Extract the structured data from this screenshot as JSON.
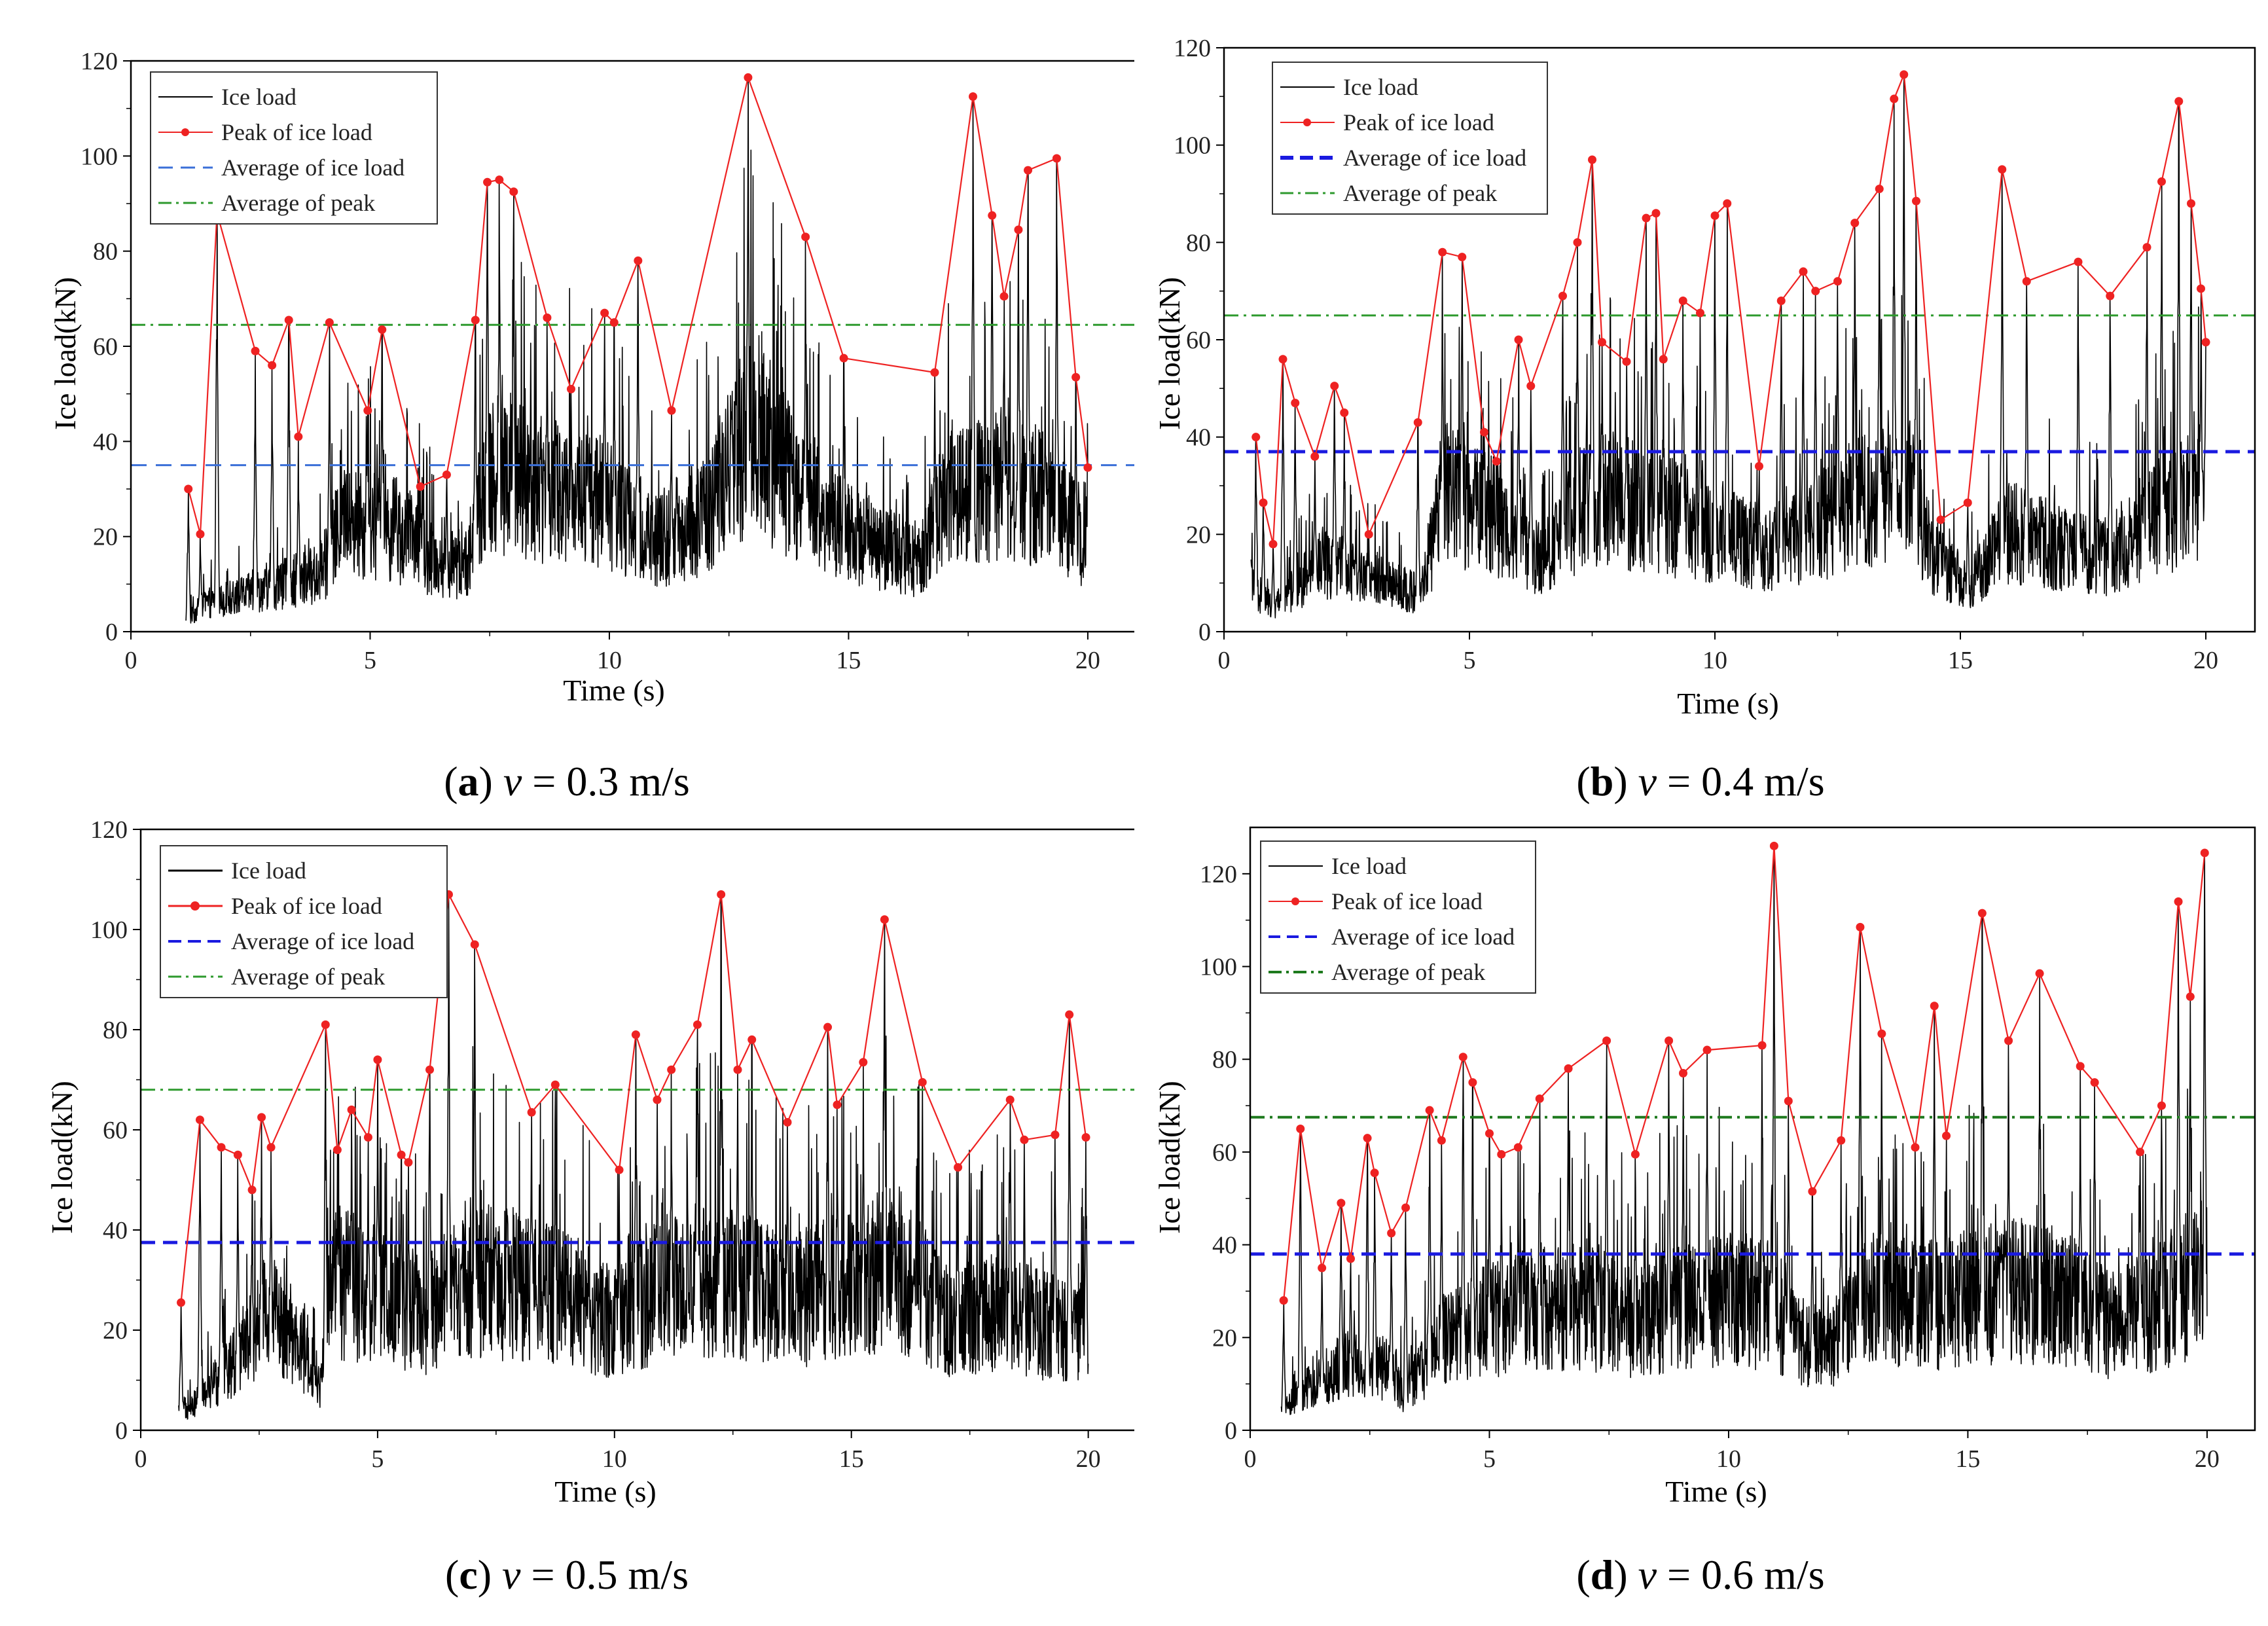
{
  "chart_data": [
    {
      "id": "a",
      "type": "line",
      "caption": {
        "letter": "a",
        "var": "v",
        "rest": " = 0.3 m/s"
      },
      "xlabel": "Time (s)",
      "ylabel": "Ice load(kN)",
      "xlim": [
        0,
        21
      ],
      "ylim": [
        0,
        120
      ],
      "xticks": [
        0,
        5,
        10,
        15,
        20
      ],
      "yticks": [
        0,
        20,
        40,
        60,
        80,
        100,
        120
      ],
      "legend": [
        "Ice load",
        "Peak of ice load",
        "Average of ice load",
        "Average of peak"
      ],
      "avg_style": "thin",
      "colors": {
        "ice": "#000000",
        "peak": "#ee2222",
        "avg": "#3a6fd8",
        "avgpeak": "#2e9a2e"
      },
      "avg_ice_load": 35,
      "avg_peak": 64.5,
      "signal_start": 1.15,
      "baseline": [
        [
          1.15,
          2
        ],
        [
          1.5,
          6
        ],
        [
          2.3,
          8
        ],
        [
          3.0,
          10
        ],
        [
          4.0,
          13
        ],
        [
          4.4,
          24
        ],
        [
          5.3,
          24
        ],
        [
          6.5,
          15
        ],
        [
          7.0,
          15
        ],
        [
          7.5,
          36
        ],
        [
          8.5,
          32
        ],
        [
          10,
          28
        ],
        [
          11,
          20
        ],
        [
          12,
          26
        ],
        [
          13,
          45
        ],
        [
          14,
          30
        ],
        [
          15,
          22
        ],
        [
          16.5,
          15
        ],
        [
          17,
          30
        ],
        [
          18,
          32
        ],
        [
          19,
          30
        ],
        [
          20,
          20
        ]
      ],
      "peaks": [
        [
          1.2,
          30
        ],
        [
          1.45,
          20.5
        ],
        [
          1.8,
          88
        ],
        [
          2.6,
          59
        ],
        [
          2.95,
          56
        ],
        [
          3.3,
          65.5
        ],
        [
          3.5,
          41
        ],
        [
          4.15,
          65
        ],
        [
          4.95,
          46.5
        ],
        [
          5.25,
          63.5
        ],
        [
          6.05,
          30.5
        ],
        [
          6.6,
          33
        ],
        [
          7.2,
          65.5
        ],
        [
          7.45,
          94.5
        ],
        [
          7.7,
          95
        ],
        [
          8.0,
          92.5
        ],
        [
          8.7,
          66
        ],
        [
          9.2,
          51
        ],
        [
          9.9,
          67
        ],
        [
          10.1,
          65
        ],
        [
          10.6,
          78
        ],
        [
          11.3,
          46.5
        ],
        [
          12.9,
          116.5
        ],
        [
          14.1,
          83
        ],
        [
          14.9,
          57.5
        ],
        [
          16.8,
          54.5
        ],
        [
          17.6,
          112.5
        ],
        [
          18.0,
          87.5
        ],
        [
          18.25,
          70.5
        ],
        [
          18.55,
          84.5
        ],
        [
          18.75,
          97
        ],
        [
          19.35,
          99.5
        ],
        [
          19.75,
          53.5
        ],
        [
          20.0,
          34.5
        ]
      ]
    },
    {
      "id": "b",
      "type": "line",
      "caption": {
        "letter": "b",
        "var": "v",
        "rest": " = 0.4 m/s"
      },
      "xlabel": "Time (s)",
      "ylabel": "Ice load(kN)",
      "xlim": [
        0,
        21
      ],
      "ylim": [
        0,
        120
      ],
      "xticks": [
        0,
        5,
        10,
        15,
        20
      ],
      "yticks": [
        0,
        20,
        40,
        60,
        80,
        100,
        120
      ],
      "legend": [
        "Ice load",
        "Peak of ice load",
        "Average of ice load",
        "Average of peak"
      ],
      "avg_style": "thick",
      "colors": {
        "ice": "#000000",
        "peak": "#ee2222",
        "avg": "#1a1ae0",
        "avgpeak": "#2e9a2e"
      },
      "avg_ice_load": 37,
      "avg_peak": 65,
      "signal_start": 0.55,
      "baseline": [
        [
          0.55,
          10
        ],
        [
          1.0,
          5
        ],
        [
          2.0,
          15
        ],
        [
          3.0,
          12
        ],
        [
          4.0,
          8
        ],
        [
          4.5,
          30
        ],
        [
          5.5,
          25
        ],
        [
          6.5,
          15
        ],
        [
          7.5,
          30
        ],
        [
          9,
          25
        ],
        [
          10,
          22
        ],
        [
          11,
          18
        ],
        [
          12,
          22
        ],
        [
          13,
          28
        ],
        [
          14,
          30
        ],
        [
          14.5,
          15
        ],
        [
          15.2,
          10
        ],
        [
          16,
          22
        ],
        [
          17,
          18
        ],
        [
          18,
          16
        ],
        [
          19,
          25
        ],
        [
          20,
          30
        ]
      ],
      "peaks": [
        [
          0.65,
          40
        ],
        [
          0.8,
          26.5
        ],
        [
          1.0,
          18
        ],
        [
          1.2,
          56
        ],
        [
          1.45,
          47
        ],
        [
          1.85,
          36
        ],
        [
          2.25,
          50.5
        ],
        [
          2.45,
          45
        ],
        [
          2.95,
          20
        ],
        [
          3.95,
          43
        ],
        [
          4.45,
          78
        ],
        [
          4.85,
          77
        ],
        [
          5.3,
          41
        ],
        [
          5.55,
          35
        ],
        [
          6.0,
          60
        ],
        [
          6.25,
          50.5
        ],
        [
          6.9,
          69
        ],
        [
          7.2,
          80
        ],
        [
          7.5,
          97
        ],
        [
          7.7,
          59.5
        ],
        [
          8.2,
          55.5
        ],
        [
          8.6,
          85
        ],
        [
          8.8,
          86
        ],
        [
          8.95,
          56
        ],
        [
          9.35,
          68
        ],
        [
          9.7,
          65.5
        ],
        [
          10.0,
          85.5
        ],
        [
          10.25,
          88
        ],
        [
          10.9,
          34
        ],
        [
          11.35,
          68
        ],
        [
          11.8,
          74
        ],
        [
          12.05,
          70
        ],
        [
          12.5,
          72
        ],
        [
          12.85,
          84
        ],
        [
          13.35,
          91
        ],
        [
          13.65,
          109.5
        ],
        [
          13.85,
          114.5
        ],
        [
          14.1,
          88.5
        ],
        [
          14.6,
          23
        ],
        [
          15.15,
          26.5
        ],
        [
          15.85,
          95
        ],
        [
          16.35,
          72
        ],
        [
          17.4,
          76
        ],
        [
          18.05,
          69
        ],
        [
          18.8,
          79
        ],
        [
          19.1,
          92.5
        ],
        [
          19.45,
          109
        ],
        [
          19.7,
          88
        ],
        [
          19.9,
          70.5
        ],
        [
          20.0,
          59.5
        ]
      ]
    },
    {
      "id": "c",
      "type": "line",
      "caption": {
        "letter": "c",
        "var": "v",
        "rest": " = 0.5 m/s"
      },
      "xlabel": "Time (s)",
      "ylabel": "Ice load(kN)",
      "xlim": [
        0,
        21
      ],
      "ylim": [
        0,
        120
      ],
      "xticks": [
        0,
        5,
        10,
        15,
        20
      ],
      "yticks": [
        0,
        20,
        40,
        60,
        80,
        100,
        120
      ],
      "legend": [
        "Ice load",
        "Peak of ice load",
        "Average of ice load",
        "Average of peak"
      ],
      "avg_style": "thick",
      "colors": {
        "ice": "#000000",
        "peak": "#ee2222",
        "avg": "#1a1ae0",
        "avgpeak": "#2e9a2e"
      },
      "avg_ice_load": 37.5,
      "avg_peak": 68,
      "signal_start": 0.8,
      "baseline": [
        [
          0.8,
          4
        ],
        [
          1.2,
          6
        ],
        [
          2.0,
          15
        ],
        [
          2.7,
          25
        ],
        [
          3.5,
          15
        ],
        [
          3.9,
          8
        ],
        [
          4.0,
          32
        ],
        [
          5,
          28
        ],
        [
          6,
          24
        ],
        [
          7,
          32
        ],
        [
          8,
          30
        ],
        [
          9,
          28
        ],
        [
          10,
          22
        ],
        [
          11,
          30
        ],
        [
          12,
          32
        ],
        [
          13,
          30
        ],
        [
          14,
          28
        ],
        [
          15,
          30
        ],
        [
          16,
          35
        ],
        [
          17,
          22
        ],
        [
          18,
          25
        ],
        [
          19,
          22
        ],
        [
          20,
          20
        ]
      ],
      "peaks": [
        [
          0.85,
          25.5
        ],
        [
          1.25,
          62
        ],
        [
          1.7,
          56.5
        ],
        [
          2.05,
          55
        ],
        [
          2.35,
          48
        ],
        [
          2.55,
          62.5
        ],
        [
          2.75,
          56.5
        ],
        [
          3.9,
          81
        ],
        [
          4.15,
          56
        ],
        [
          4.45,
          64
        ],
        [
          4.8,
          58.5
        ],
        [
          5.0,
          74
        ],
        [
          5.5,
          55
        ],
        [
          5.65,
          53.5
        ],
        [
          6.1,
          72
        ],
        [
          6.5,
          107
        ],
        [
          7.05,
          97
        ],
        [
          8.25,
          63.5
        ],
        [
          8.75,
          69
        ],
        [
          10.1,
          52
        ],
        [
          10.45,
          79
        ],
        [
          10.9,
          66
        ],
        [
          11.2,
          72
        ],
        [
          11.75,
          81
        ],
        [
          12.25,
          107
        ],
        [
          12.6,
          72
        ],
        [
          12.9,
          78
        ],
        [
          13.65,
          61.5
        ],
        [
          14.5,
          80.5
        ],
        [
          14.7,
          65
        ],
        [
          15.25,
          73.5
        ],
        [
          15.7,
          102
        ],
        [
          16.5,
          69.5
        ],
        [
          17.25,
          52.5
        ],
        [
          18.35,
          66
        ],
        [
          18.65,
          58
        ],
        [
          19.3,
          59
        ],
        [
          19.6,
          83
        ],
        [
          19.95,
          58.5
        ]
      ]
    },
    {
      "id": "d",
      "type": "line",
      "caption": {
        "letter": "d",
        "var": "v",
        "rest": " = 0.6 m/s"
      },
      "xlabel": "Time (s)",
      "ylabel": "Ice load(kN)",
      "xlim": [
        0,
        21
      ],
      "ylim": [
        0,
        130
      ],
      "xticks": [
        0,
        5,
        10,
        15,
        20
      ],
      "yticks": [
        0,
        20,
        40,
        60,
        80,
        100,
        120
      ],
      "legend": [
        "Ice load",
        "Peak of ice load",
        "Average of ice load",
        "Average of peak"
      ],
      "avg_style": "thick",
      "colors": {
        "ice": "#000000",
        "peak": "#ee2222",
        "avg": "#1a1ae0",
        "avgpeak": "#1e7a1e"
      },
      "avg_ice_load": 38,
      "avg_peak": 67.5,
      "signal_start": 0.65,
      "baseline": [
        [
          0.65,
          4
        ],
        [
          1.0,
          8
        ],
        [
          2.0,
          15
        ],
        [
          3.0,
          14
        ],
        [
          3.2,
          8
        ],
        [
          4,
          20
        ],
        [
          5,
          25
        ],
        [
          6,
          28
        ],
        [
          7,
          28
        ],
        [
          8,
          25
        ],
        [
          9,
          28
        ],
        [
          10,
          30
        ],
        [
          11,
          28
        ],
        [
          11.5,
          20
        ],
        [
          12,
          18
        ],
        [
          13,
          30
        ],
        [
          14,
          28
        ],
        [
          15,
          30
        ],
        [
          16,
          32
        ],
        [
          17,
          30
        ],
        [
          18,
          24
        ],
        [
          19,
          28
        ],
        [
          20,
          36
        ]
      ],
      "peaks": [
        [
          0.7,
          28
        ],
        [
          1.05,
          65
        ],
        [
          1.5,
          35
        ],
        [
          1.9,
          49
        ],
        [
          2.1,
          37
        ],
        [
          2.45,
          63
        ],
        [
          2.6,
          55.5
        ],
        [
          2.95,
          42.5
        ],
        [
          3.25,
          48
        ],
        [
          3.75,
          69
        ],
        [
          4.0,
          62.5
        ],
        [
          4.45,
          80.5
        ],
        [
          4.65,
          75
        ],
        [
          5.0,
          64
        ],
        [
          5.25,
          59.5
        ],
        [
          5.6,
          61
        ],
        [
          6.05,
          71.5
        ],
        [
          6.65,
          78
        ],
        [
          7.45,
          84
        ],
        [
          8.05,
          59.5
        ],
        [
          8.75,
          84
        ],
        [
          9.05,
          77
        ],
        [
          9.55,
          82
        ],
        [
          10.7,
          83
        ],
        [
          10.95,
          126
        ],
        [
          11.25,
          71
        ],
        [
          11.75,
          51.5
        ],
        [
          12.35,
          62.5
        ],
        [
          12.75,
          108.5
        ],
        [
          13.2,
          85.5
        ],
        [
          13.9,
          61
        ],
        [
          14.3,
          91.5
        ],
        [
          14.55,
          63.5
        ],
        [
          15.3,
          111.5
        ],
        [
          15.85,
          84
        ],
        [
          16.5,
          98.5
        ],
        [
          17.35,
          78.5
        ],
        [
          17.65,
          75
        ],
        [
          18.6,
          60
        ],
        [
          19.05,
          70
        ],
        [
          19.4,
          114
        ],
        [
          19.65,
          93.5
        ],
        [
          19.95,
          124.5
        ]
      ]
    }
  ]
}
